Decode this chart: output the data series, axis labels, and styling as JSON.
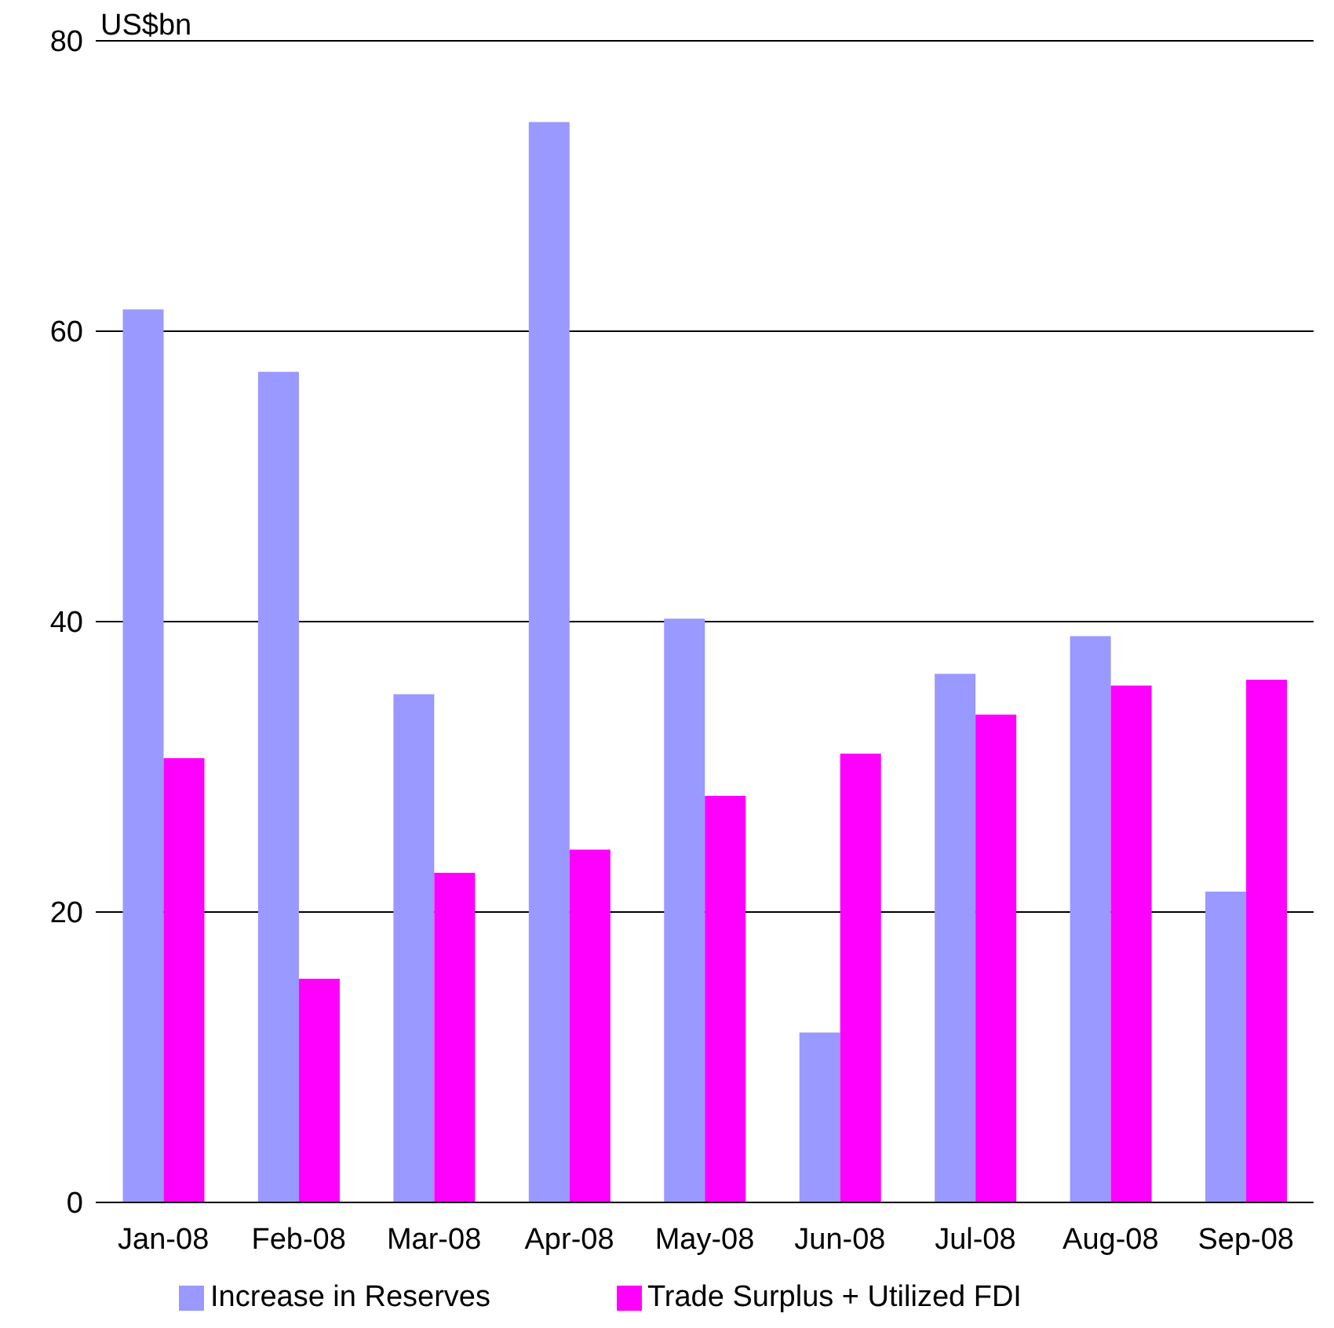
{
  "chart_data": {
    "type": "bar",
    "ylabel": "US$bn",
    "categories": [
      "Jan-08",
      "Feb-08",
      "Mar-08",
      "Apr-08",
      "May-08",
      "Jun-08",
      "Jul-08",
      "Aug-08",
      "Sep-08"
    ],
    "series": [
      {
        "name": "Increase in Reserves",
        "color": "#9999ff",
        "values": [
          61.5,
          57.2,
          35.0,
          74.4,
          40.2,
          11.7,
          36.4,
          39.0,
          21.4
        ]
      },
      {
        "name": "Trade Surplus + Utilized FDI",
        "color": "#ff00ff",
        "values": [
          30.6,
          15.4,
          22.7,
          24.3,
          28.0,
          30.9,
          33.6,
          35.6,
          36.0
        ]
      }
    ],
    "ylim": [
      0,
      80
    ],
    "yticks": [
      0,
      20,
      40,
      60,
      80
    ],
    "grid": "y",
    "legend": "bottom"
  }
}
